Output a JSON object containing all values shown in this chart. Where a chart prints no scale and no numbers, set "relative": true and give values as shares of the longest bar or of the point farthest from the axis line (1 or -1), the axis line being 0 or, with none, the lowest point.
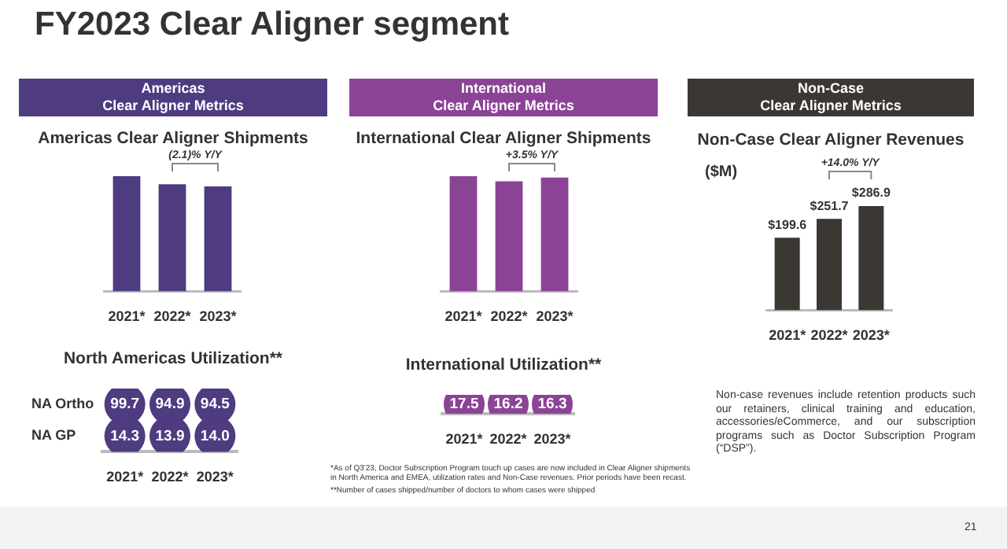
{
  "chart_data": [
    {
      "type": "bar",
      "title": "Americas Clear Aligner Shipments",
      "subtitle": "Americas\nClear Aligner Metrics",
      "categories": [
        "2021*",
        "2022*",
        "2023*"
      ],
      "values": [
        1,
        0.93,
        0.911
      ],
      "color": "#4e3b80",
      "relative": true,
      "annotations": [
        "(2.1)% Y/Y",
        "FY2023 Clear Aligner segment"
      ]
    },
    {
      "type": "other",
      "title": "North Americas Utilization**",
      "categories": [
        "2021*",
        "2022*",
        "2023*"
      ],
      "data_labels": true,
      "series": [
        {
          "name": "NA Ortho",
          "color": "#4e3b80",
          "values": [
            99.7,
            94.9,
            94.5
          ]
        },
        {
          "name": "NA GP",
          "color": "#4e3b80",
          "values": [
            14.3,
            13.9,
            14.0
          ],
          "value_labels": [
            "14.3",
            "13.9",
            "14.0"
          ]
        }
      ]
    },
    {
      "type": "bar",
      "title": "International Clear Aligner Shipments",
      "subtitle": "International\nClear Aligner Metrics",
      "categories": [
        "2021*",
        "2022*",
        "2023*"
      ],
      "values": [
        1,
        0.955,
        0.988
      ],
      "color": "#8b4396",
      "relative": true,
      "annotations": [
        "+3.5% Y/Y"
      ]
    },
    {
      "type": "other",
      "title": "International Utilization**",
      "categories": [
        "2021*",
        "2022*",
        "2023*"
      ],
      "data_labels": true,
      "series": [
        {
          "color": "#8b4396",
          "values": [
            17.5,
            16.2,
            16.3
          ]
        }
      ]
    },
    {
      "type": "bar",
      "title": "Non-Case Clear Aligner Revenues",
      "subtitle": "Non-Case\nClear Aligner Metrics",
      "ylabel": "($M)",
      "categories": [
        "2021*",
        "2022*",
        "2023*"
      ],
      "values": [
        199.6,
        251.7,
        286.9
      ],
      "value_labels": [
        "$199.6",
        "$251.7",
        "$286.9"
      ],
      "color": "#3b3733",
      "annotations": [
        "+14.0% Y/Y",
        "Non-case revenues include retention products such our retainers, clinical training and education, accessories/eCommerce, and our subscription programs such as Doctor Subscription Program (“DSP”).",
        "*As of Q3'23, Doctor Subscription Program touch up cases are now included in Clear Aligner shipments in North America and EMEA, utilization rates and Non-Case revenues. Prior periods have been recast.",
        "**Number of cases shipped/number of doctors to whom cases were shipped",
        "21"
      ]
    }
  ]
}
